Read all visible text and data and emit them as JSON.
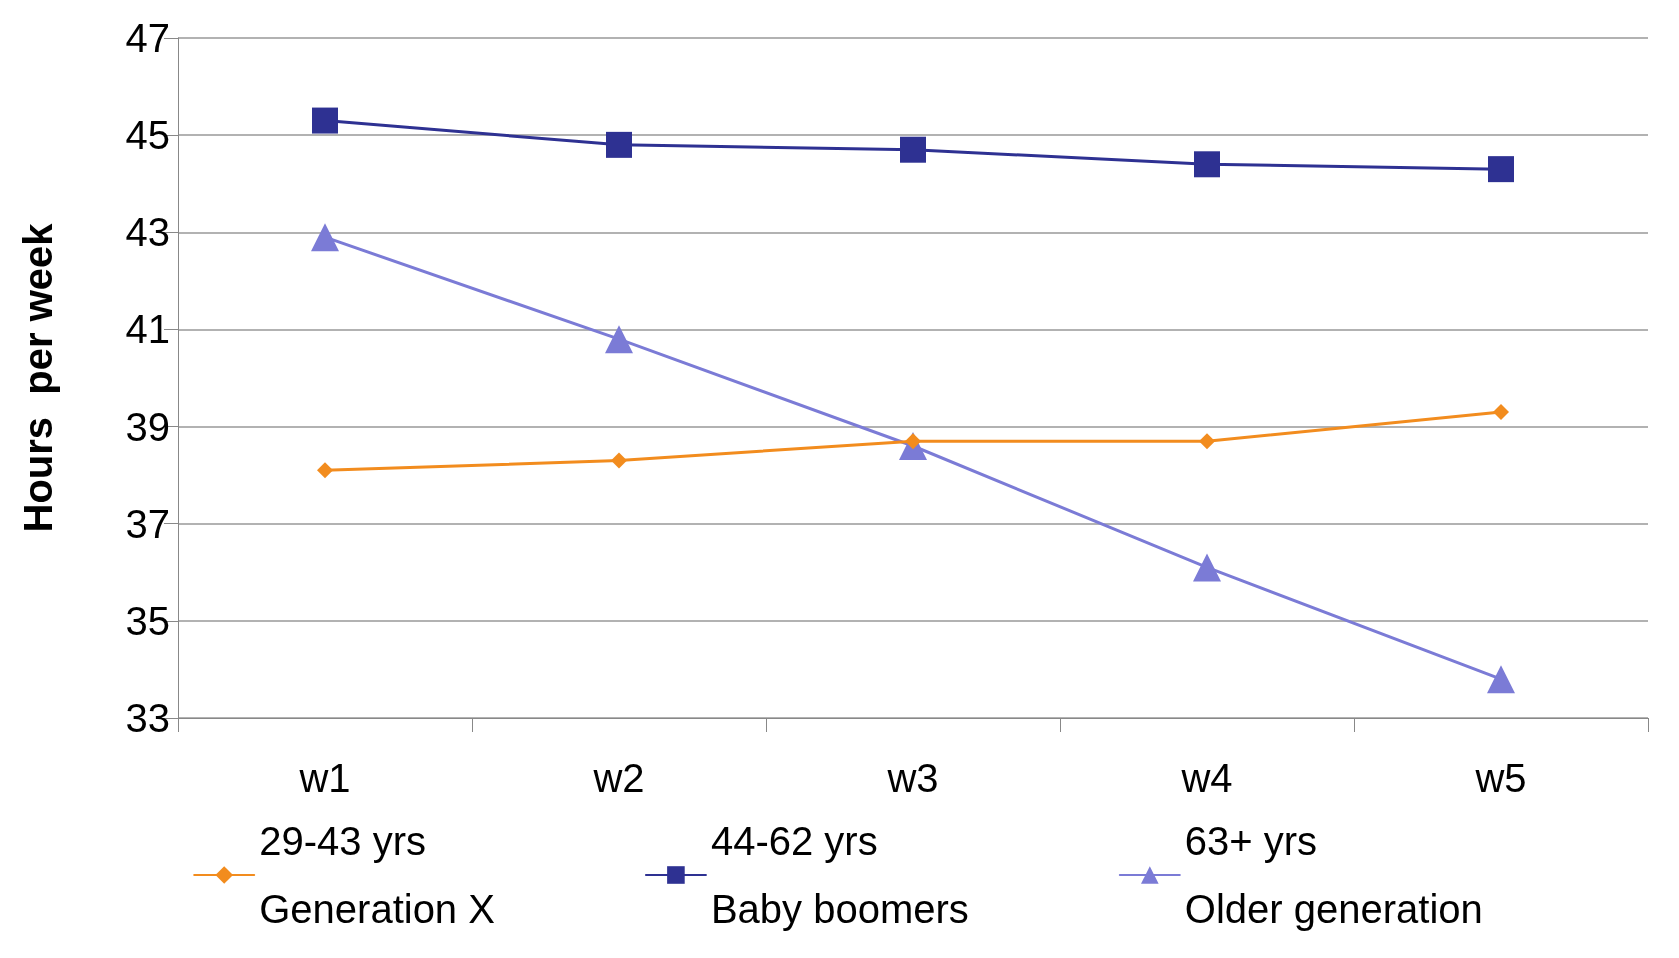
{
  "chart_data": {
    "type": "line",
    "ylabel": "Hours  per week",
    "categories": [
      "w1",
      "w2",
      "w3",
      "w4",
      "w5"
    ],
    "series": [
      {
        "name": "29-43 yrs\nGeneration X",
        "color": "#f28c1e",
        "marker": "diamond",
        "values": [
          38.1,
          38.3,
          38.7,
          38.7,
          39.3
        ]
      },
      {
        "name": "44-62 yrs\nBaby boomers",
        "color": "#2e3192",
        "marker": "square",
        "values": [
          45.3,
          44.8,
          44.7,
          44.4,
          44.3
        ]
      },
      {
        "name": "63+ yrs\nOlder generation",
        "color": "#7b7bd6",
        "marker": "triangle",
        "values": [
          42.9,
          40.8,
          38.6,
          36.1,
          33.8
        ]
      }
    ],
    "ylim": [
      33,
      47
    ],
    "yticks": [
      33,
      35,
      37,
      39,
      41,
      43,
      45,
      47
    ],
    "grid": "y",
    "legend": "bottom",
    "line_style": "solid"
  }
}
